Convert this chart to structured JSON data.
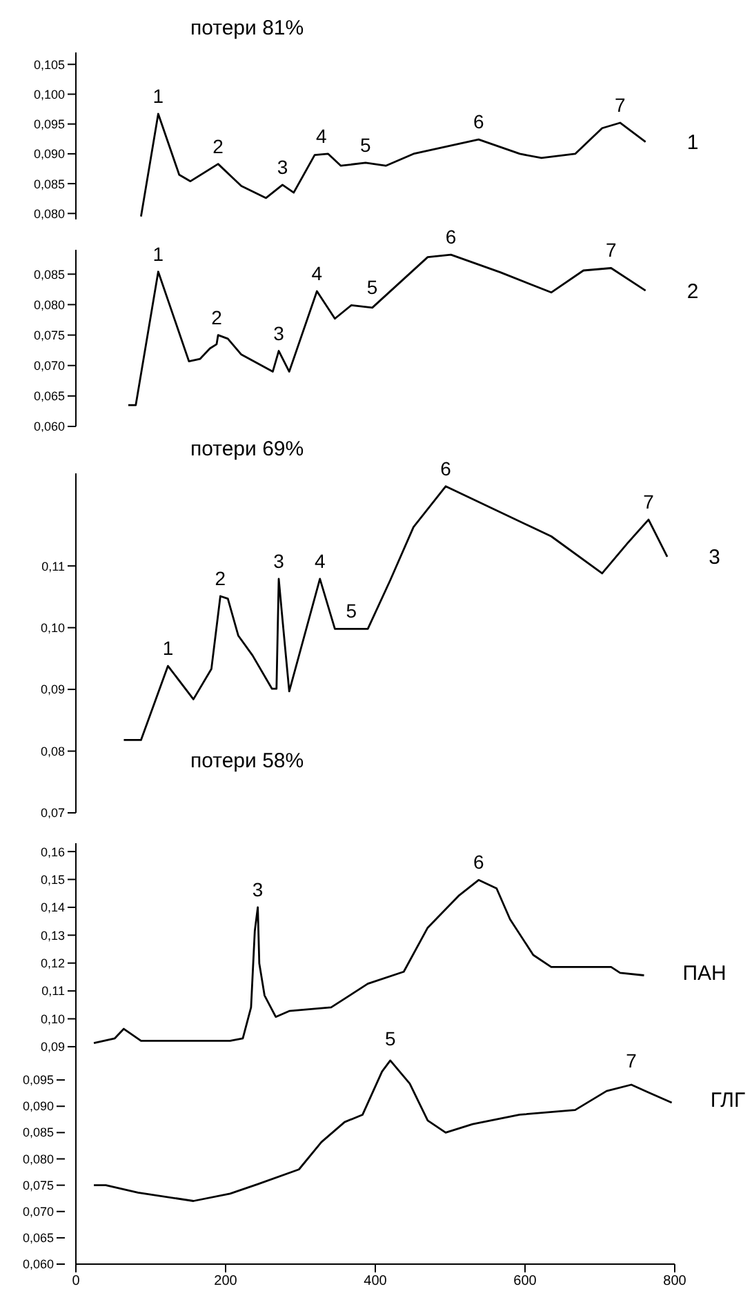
{
  "chart_data": [
    {
      "type": "line",
      "xlim": [
        0,
        800
      ],
      "tick_labels": "y",
      "ylim": [
        0.079,
        0.107
      ],
      "yticks": [
        {
          "value": 0.08,
          "label": "0,080"
        },
        {
          "value": 0.085,
          "label": "0,085"
        },
        {
          "value": 0.09,
          "label": "0,090"
        },
        {
          "value": 0.095,
          "label": "0,095"
        },
        {
          "value": 0.1,
          "label": "0,100"
        },
        {
          "value": 0.105,
          "label": "0,105"
        }
      ],
      "series": [
        {
          "color": "#000000",
          "x": [
            87,
            110,
            138,
            153,
            190,
            221,
            254,
            276,
            291,
            319,
            337,
            354,
            387,
            414,
            451,
            538,
            593,
            622,
            667,
            703,
            727,
            761
          ],
          "values": [
            0.0795,
            0.0967,
            0.0865,
            0.0854,
            0.0883,
            0.0846,
            0.0826,
            0.0848,
            0.0835,
            0.0898,
            0.09,
            0.088,
            0.0885,
            0.088,
            0.09,
            0.0924,
            0.09,
            0.0893,
            0.09,
            0.0943,
            0.0952,
            0.092
          ]
        }
      ],
      "annotations": [
        "потери 81%",
        {
          "text": "1",
          "x": 761,
          "y": 0.092
        },
        {
          "text": "1",
          "x": 110,
          "y": 0.0967
        },
        {
          "text": "2",
          "x": 190,
          "y": 0.0883
        },
        {
          "text": "3",
          "x": 276,
          "y": 0.0848
        },
        {
          "text": "4",
          "x": 328,
          "y": 0.09
        },
        {
          "text": "5",
          "x": 387,
          "y": 0.0885
        },
        {
          "text": "6",
          "x": 538,
          "y": 0.0924
        },
        {
          "text": "7",
          "x": 727,
          "y": 0.0952
        }
      ]
    },
    {
      "type": "line",
      "xlim": [
        0,
        800
      ],
      "tick_labels": "y",
      "ylim": [
        0.06,
        0.089
      ],
      "yticks": [
        {
          "value": 0.06,
          "label": "0,060"
        },
        {
          "value": 0.065,
          "label": "0,065"
        },
        {
          "value": 0.07,
          "label": "0,070"
        },
        {
          "value": 0.075,
          "label": "0,075"
        },
        {
          "value": 0.08,
          "label": "0,080"
        },
        {
          "value": 0.085,
          "label": "0,085"
        }
      ],
      "series": [
        {
          "color": "#000000",
          "x": [
            70,
            80,
            110,
            151,
            166,
            179,
            188,
            190,
            203,
            221,
            263,
            271,
            285,
            322,
            346,
            368,
            396,
            470,
            501,
            567,
            635,
            678,
            715,
            761
          ],
          "values": [
            0.0635,
            0.0635,
            0.0854,
            0.0707,
            0.0711,
            0.0728,
            0.0735,
            0.075,
            0.0744,
            0.0718,
            0.069,
            0.0724,
            0.069,
            0.0822,
            0.0777,
            0.0799,
            0.0795,
            0.0878,
            0.0882,
            0.0853,
            0.082,
            0.0856,
            0.086,
            0.0823
          ]
        }
      ],
      "annotations": [
        {
          "text": "2",
          "x": 761,
          "y": 0.0823
        },
        {
          "text": "1",
          "x": 110,
          "y": 0.0854
        },
        {
          "text": "2",
          "x": 188,
          "y": 0.075
        },
        {
          "text": "3",
          "x": 271,
          "y": 0.0724
        },
        {
          "text": "4",
          "x": 322,
          "y": 0.0822
        },
        {
          "text": "5",
          "x": 396,
          "y": 0.0799
        },
        {
          "text": "6",
          "x": 501,
          "y": 0.0882
        },
        {
          "text": "7",
          "x": 715,
          "y": 0.086
        }
      ]
    },
    {
      "type": "line",
      "xlim": [
        0,
        800
      ],
      "tick_labels": "y",
      "ylim": [
        0.07,
        0.125
      ],
      "yticks": [
        {
          "value": 0.07,
          "label": "0,07"
        },
        {
          "value": 0.08,
          "label": "0,08"
        },
        {
          "value": 0.09,
          "label": "0,09"
        },
        {
          "value": 0.1,
          "label": "0,10"
        },
        {
          "value": 0.11,
          "label": "0,11"
        }
      ],
      "series": [
        {
          "color": "#000000",
          "x": [
            64,
            87,
            123,
            157,
            181,
            193,
            203,
            217,
            236,
            262,
            268,
            271,
            275,
            285,
            326,
            346,
            390,
            420,
            451,
            494,
            635,
            703,
            737,
            765,
            790
          ],
          "values": [
            0.0818,
            0.0818,
            0.0938,
            0.0884,
            0.0933,
            0.1051,
            0.1047,
            0.0987,
            0.0955,
            0.0901,
            0.0901,
            0.1079,
            0.1026,
            0.0897,
            0.1079,
            0.0998,
            0.0998,
            0.1077,
            0.1163,
            0.1229,
            0.1148,
            0.1088,
            0.1137,
            0.1175,
            0.1115
          ]
        }
      ],
      "annotations": [
        "потери 69%",
        "потери 58%",
        {
          "text": "3",
          "x": 790,
          "y": 0.1115
        },
        {
          "text": "1",
          "x": 123,
          "y": 0.0938
        },
        {
          "text": "2",
          "x": 193,
          "y": 0.1051
        },
        {
          "text": "3",
          "x": 271,
          "y": 0.1079
        },
        {
          "text": "4",
          "x": 326,
          "y": 0.1079
        },
        {
          "text": "5",
          "x": 368,
          "y": 0.0998
        },
        {
          "text": "6",
          "x": 494,
          "y": 0.1229
        },
        {
          "text": "7",
          "x": 765,
          "y": 0.1175
        }
      ]
    },
    {
      "type": "line",
      "xlim": [
        0,
        800
      ],
      "xticks": [
        0,
        200,
        400,
        600,
        800
      ],
      "ylim": [
        0.012,
        0.163
      ],
      "yticks": [
        {
          "value": 0.09,
          "label": "0,09"
        },
        {
          "value": 0.1,
          "label": "0,10"
        },
        {
          "value": 0.11,
          "label": "0,11"
        },
        {
          "value": 0.12,
          "label": "0,12"
        },
        {
          "value": 0.13,
          "label": "0,13"
        },
        {
          "value": 0.14,
          "label": "0,14"
        },
        {
          "value": 0.15,
          "label": "0,15"
        },
        {
          "value": 0.16,
          "label": "0,16"
        }
      ],
      "y2lim": [
        0.06,
        0.14
      ],
      "y2ticks": [
        {
          "value": 0.06,
          "label": "0,060"
        },
        {
          "value": 0.065,
          "label": "0,065"
        },
        {
          "value": 0.07,
          "label": "0,070"
        },
        {
          "value": 0.075,
          "label": "0,075"
        },
        {
          "value": 0.08,
          "label": "0,080"
        },
        {
          "value": 0.085,
          "label": "0,085"
        },
        {
          "value": 0.09,
          "label": "0,090"
        },
        {
          "value": 0.095,
          "label": "0,095"
        }
      ],
      "series": [
        {
          "name": "ПАН",
          "color": "#000000",
          "x": [
            24,
            52,
            64,
            87,
            206,
            223,
            234,
            239,
            243,
            245,
            252,
            267,
            285,
            341,
            390,
            438,
            470,
            512,
            538,
            562,
            580,
            611,
            635,
            715,
            727,
            759
          ],
          "values": [
            0.0913,
            0.093,
            0.0964,
            0.0921,
            0.0921,
            0.093,
            0.1041,
            0.1315,
            0.14,
            0.1199,
            0.1084,
            0.1007,
            0.1028,
            0.1041,
            0.1126,
            0.1169,
            0.1327,
            0.1443,
            0.1498,
            0.1468,
            0.1357,
            0.1229,
            0.1186,
            0.1186,
            0.1165,
            0.1156
          ]
        },
        {
          "name": "ГЛГ",
          "color": "#000000",
          "axis": "y2",
          "x": [
            24,
            40,
            83,
            157,
            206,
            243,
            298,
            328,
            359,
            383,
            409,
            420,
            446,
            470,
            494,
            530,
            593,
            667,
            709,
            742,
            764,
            796
          ],
          "values": [
            0.075,
            0.075,
            0.0736,
            0.072,
            0.0734,
            0.0752,
            0.078,
            0.0832,
            0.087,
            0.0884,
            0.0966,
            0.0987,
            0.0943,
            0.0873,
            0.085,
            0.0866,
            0.0884,
            0.0893,
            0.0929,
            0.0941,
            0.0927,
            0.0907
          ]
        }
      ],
      "annotations": [
        {
          "text": "3",
          "x": 243,
          "y": 0.14
        },
        {
          "text": "6",
          "x": 538,
          "y": 0.1498
        },
        {
          "text": "5",
          "x": 420,
          "y": 0.0866
        },
        {
          "text": "7",
          "x": 742,
          "y": 0.0785
        }
      ]
    }
  ]
}
